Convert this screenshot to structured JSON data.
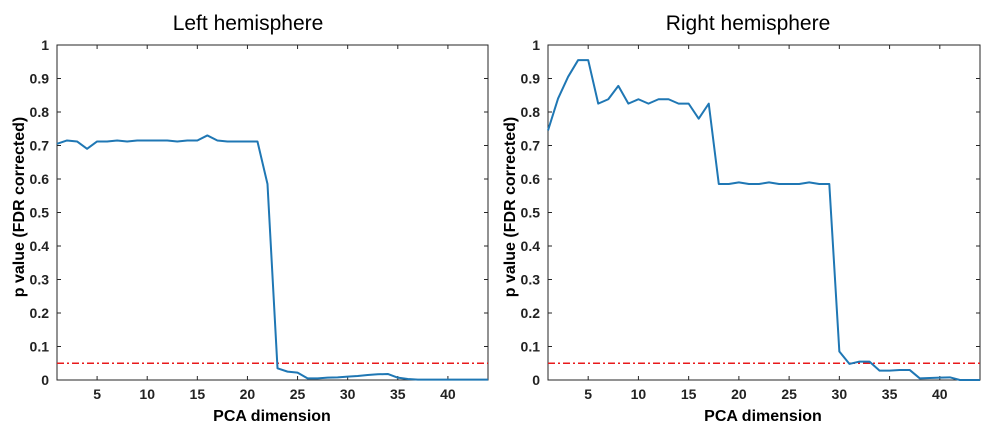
{
  "chart_data": [
    {
      "type": "line",
      "title": "Left hemisphere",
      "xlabel": "PCA dimension",
      "ylabel": "p value (FDR corrected)",
      "xlim": [
        1,
        44
      ],
      "ylim": [
        0,
        1
      ],
      "xticks": [
        5,
        10,
        15,
        20,
        25,
        30,
        35,
        40
      ],
      "yticks": [
        0,
        0.1,
        0.2,
        0.3,
        0.4,
        0.5,
        0.6,
        0.7,
        0.8,
        0.9,
        1
      ],
      "ytick_labels": [
        "0",
        "0.1",
        "0.2",
        "0.3",
        "0.4",
        "0.5",
        "0.6",
        "0.7",
        "0.8",
        "0.9",
        "1"
      ],
      "grid": false,
      "series_color": "#1f77b4",
      "threshold": {
        "y": 0.05,
        "color": "#e8191b",
        "style": "dash-dot"
      },
      "x": [
        1,
        2,
        3,
        4,
        5,
        6,
        7,
        8,
        9,
        10,
        11,
        12,
        13,
        14,
        15,
        16,
        17,
        18,
        19,
        20,
        21,
        22,
        23,
        24,
        25,
        26,
        27,
        28,
        29,
        30,
        31,
        32,
        33,
        34,
        35,
        36,
        37,
        38,
        39,
        40,
        41,
        42,
        43,
        44
      ],
      "y": [
        0.705,
        0.715,
        0.712,
        0.69,
        0.712,
        0.712,
        0.715,
        0.712,
        0.715,
        0.715,
        0.715,
        0.715,
        0.712,
        0.715,
        0.715,
        0.73,
        0.715,
        0.712,
        0.712,
        0.712,
        0.712,
        0.585,
        0.035,
        0.025,
        0.022,
        0.005,
        0.005,
        0.007,
        0.008,
        0.01,
        0.012,
        0.015,
        0.017,
        0.018,
        0.007,
        0.003,
        0.001,
        0.001,
        0.001,
        0.001,
        0.001,
        0.001,
        0.001,
        0.001
      ]
    },
    {
      "type": "line",
      "title": "Right hemisphere",
      "xlabel": "PCA dimension",
      "ylabel": "p value (FDR corrected)",
      "xlim": [
        1,
        44
      ],
      "ylim": [
        0,
        1
      ],
      "xticks": [
        5,
        10,
        15,
        20,
        25,
        30,
        35,
        40
      ],
      "yticks": [
        0,
        0.1,
        0.2,
        0.3,
        0.4,
        0.5,
        0.6,
        0.7,
        0.8,
        0.9,
        1
      ],
      "ytick_labels": [
        "0",
        "0.1",
        "0.2",
        "0.3",
        "0.4",
        "0.5",
        "0.6",
        "0.7",
        "0.8",
        "0.9",
        "1"
      ],
      "grid": false,
      "series_color": "#1f77b4",
      "threshold": {
        "y": 0.05,
        "color": "#e8191b",
        "style": "dash-dot"
      },
      "x": [
        1,
        2,
        3,
        4,
        5,
        6,
        7,
        8,
        9,
        10,
        11,
        12,
        13,
        14,
        15,
        16,
        17,
        18,
        19,
        20,
        21,
        22,
        23,
        24,
        25,
        26,
        27,
        28,
        29,
        30,
        31,
        32,
        33,
        34,
        35,
        36,
        37,
        38,
        39,
        40,
        41,
        42,
        43,
        44
      ],
      "y": [
        0.745,
        0.84,
        0.905,
        0.955,
        0.955,
        0.825,
        0.838,
        0.878,
        0.825,
        0.838,
        0.825,
        0.838,
        0.838,
        0.825,
        0.825,
        0.78,
        0.825,
        0.585,
        0.585,
        0.59,
        0.585,
        0.585,
        0.59,
        0.585,
        0.585,
        0.585,
        0.59,
        0.585,
        0.585,
        0.085,
        0.048,
        0.055,
        0.055,
        0.028,
        0.028,
        0.03,
        0.03,
        0.005,
        0.006,
        0.007,
        0.008,
        0.0,
        0.0,
        0.0
      ]
    }
  ]
}
